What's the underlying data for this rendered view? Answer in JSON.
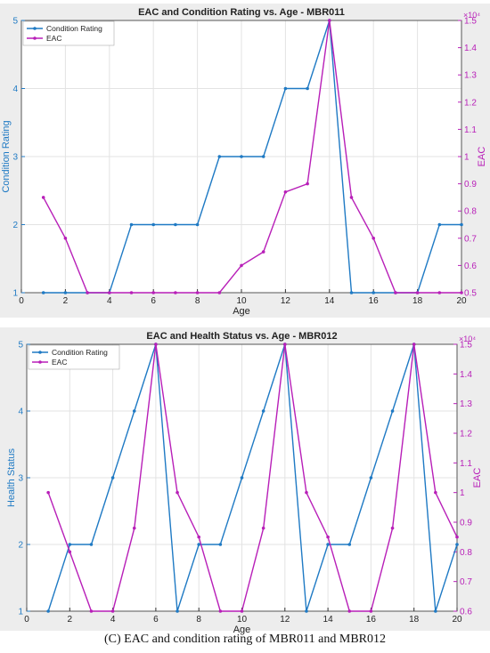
{
  "caption": "(C) EAC and condition rating of MBR011 and MBR012",
  "colors": {
    "rating": "#1f7ac4",
    "eac": "#b81fb8",
    "grid": "#e3e3e3",
    "axis": "#333333"
  },
  "chart_data": [
    {
      "type": "line",
      "title": "EAC and Condition Rating vs. Age - MBR011",
      "xlabel": "Age",
      "ylabel_left": "Condition Rating",
      "ylabel_right": "EAC",
      "right_exponent_label": "×10⁴",
      "xlim": [
        0,
        20
      ],
      "ylim_left": [
        1,
        5
      ],
      "ylim_right": [
        0.5,
        1.5
      ],
      "xticks": [
        0,
        2,
        4,
        6,
        8,
        10,
        12,
        14,
        16,
        18,
        20
      ],
      "yticks_left": [
        1,
        2,
        3,
        4,
        5
      ],
      "yticks_right": [
        0.5,
        0.6,
        0.7,
        0.8,
        0.9,
        1,
        1.1,
        1.2,
        1.3,
        1.4,
        1.5
      ],
      "grid": true,
      "legend": "top-left",
      "x": [
        1,
        2,
        3,
        4,
        5,
        6,
        7,
        8,
        9,
        10,
        11,
        12,
        13,
        14,
        15,
        16,
        17,
        18,
        19,
        20
      ],
      "series": [
        {
          "name": "Condition Rating",
          "axis": "left",
          "values": [
            1,
            1,
            1,
            1,
            2,
            2,
            2,
            2,
            3,
            3,
            3,
            4,
            4,
            5,
            1,
            1,
            1,
            1,
            2,
            2
          ]
        },
        {
          "name": "EAC",
          "axis": "right",
          "values": [
            0.85,
            0.7,
            0.5,
            0.5,
            0.5,
            0.5,
            0.5,
            0.5,
            0.5,
            0.6,
            0.65,
            0.87,
            0.9,
            1.5,
            0.85,
            0.7,
            0.5,
            0.5,
            0.5,
            0.5
          ]
        }
      ]
    },
    {
      "type": "line",
      "title": "EAC and Health Status vs. Age - MBR012",
      "xlabel": "Age",
      "ylabel_left": "Health Status",
      "ylabel_right": "EAC",
      "right_exponent_label": "×10⁴",
      "xlim": [
        0,
        20
      ],
      "ylim_left": [
        1,
        5
      ],
      "ylim_right": [
        0.6,
        1.5
      ],
      "xticks": [
        0,
        2,
        4,
        6,
        8,
        10,
        12,
        14,
        16,
        18,
        20
      ],
      "yticks_left": [
        1,
        2,
        3,
        4,
        5
      ],
      "yticks_right": [
        0.6,
        0.7,
        0.8,
        0.9,
        1,
        1.1,
        1.2,
        1.3,
        1.4,
        1.5
      ],
      "grid": true,
      "legend": "top-left",
      "x": [
        1,
        2,
        3,
        4,
        5,
        6,
        7,
        8,
        9,
        10,
        11,
        12,
        13,
        14,
        15,
        16,
        17,
        18,
        19,
        20
      ],
      "series": [
        {
          "name": "Condition Rating",
          "axis": "left",
          "values": [
            1,
            2,
            2,
            3,
            4,
            5,
            1,
            2,
            2,
            3,
            4,
            5,
            1,
            2,
            2,
            3,
            4,
            5,
            1,
            2
          ]
        },
        {
          "name": "EAC",
          "axis": "right",
          "values": [
            1.0,
            0.8,
            0.6,
            0.6,
            0.88,
            1.5,
            1.0,
            0.85,
            0.6,
            0.6,
            0.88,
            1.5,
            1.0,
            0.85,
            0.6,
            0.6,
            0.88,
            1.5,
            1.0,
            0.85
          ]
        }
      ]
    }
  ]
}
